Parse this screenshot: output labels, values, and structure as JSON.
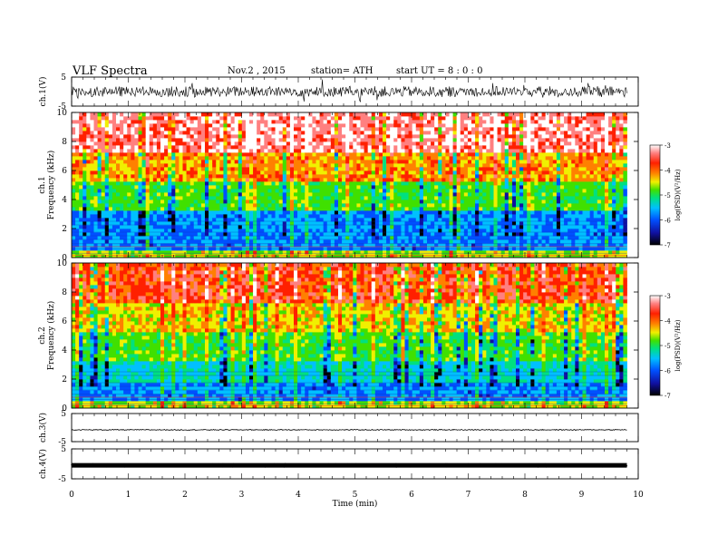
{
  "header": {
    "title": "VLF Spectra",
    "date": "Nov.2 , 2015",
    "station": "station= ATH",
    "start": "start UT = 8 : 0 : 0"
  },
  "chart_data": [
    {
      "type": "line",
      "title": "",
      "ylabel": "ch.1(V)",
      "ylim": [
        -5,
        5
      ],
      "yticks": [
        5,
        -5
      ],
      "xlim": [
        0,
        10
      ],
      "series": [
        {
          "values_description_note_free": true,
          "baseline": 0.0,
          "amplitude": 1.8
        }
      ]
    },
    {
      "type": "heatmap",
      "ylabel": "Frequency (kHz)",
      "channel_label": "ch.1",
      "ylim": [
        0,
        10
      ],
      "yticks": [
        0,
        2,
        4,
        6,
        8,
        10
      ],
      "xlim": [
        0,
        10
      ],
      "colorbar": {
        "label": "log(PSD)(V²/Hz)",
        "range": [
          -7,
          -3
        ],
        "ticks": [
          -3,
          -4,
          -5,
          -6,
          -7
        ]
      }
    },
    {
      "type": "heatmap",
      "ylabel": "Frequency (kHz)",
      "channel_label": "ch.2",
      "ylim": [
        0,
        10
      ],
      "yticks": [
        0,
        2,
        4,
        6,
        8,
        10
      ],
      "xlim": [
        0,
        10
      ],
      "colorbar": {
        "label": "log(PSD)(V²/Hz)",
        "range": [
          -7,
          -3
        ],
        "ticks": [
          -3,
          -4,
          -5,
          -6,
          -7
        ]
      }
    },
    {
      "type": "line",
      "ylabel": "ch.3(V)",
      "ylim": [
        -5,
        5
      ],
      "yticks": [
        5,
        -5
      ],
      "xlim": [
        0,
        10
      ],
      "series": [
        {
          "baseline": -0.8,
          "amplitude": 0.15
        }
      ]
    },
    {
      "type": "line",
      "ylabel": "ch.4(V)",
      "ylim": [
        -5,
        5
      ],
      "yticks": [
        5,
        -5
      ],
      "xlim": [
        0,
        10
      ],
      "series": [
        {
          "baseline": -0.5,
          "amplitude": 0.2
        }
      ]
    }
  ],
  "xaxis": {
    "label": "Time (min)",
    "ticks": [
      0,
      1,
      2,
      3,
      4,
      5,
      6,
      7,
      8,
      9,
      10
    ],
    "data_end": 9.8
  },
  "colors": {
    "scale": [
      "#000000",
      "#1010a0",
      "#0050ff",
      "#00c0ff",
      "#00e080",
      "#40e000",
      "#f0f000",
      "#ff8000",
      "#ff2000",
      "#ff8080",
      "#ffffff"
    ]
  }
}
